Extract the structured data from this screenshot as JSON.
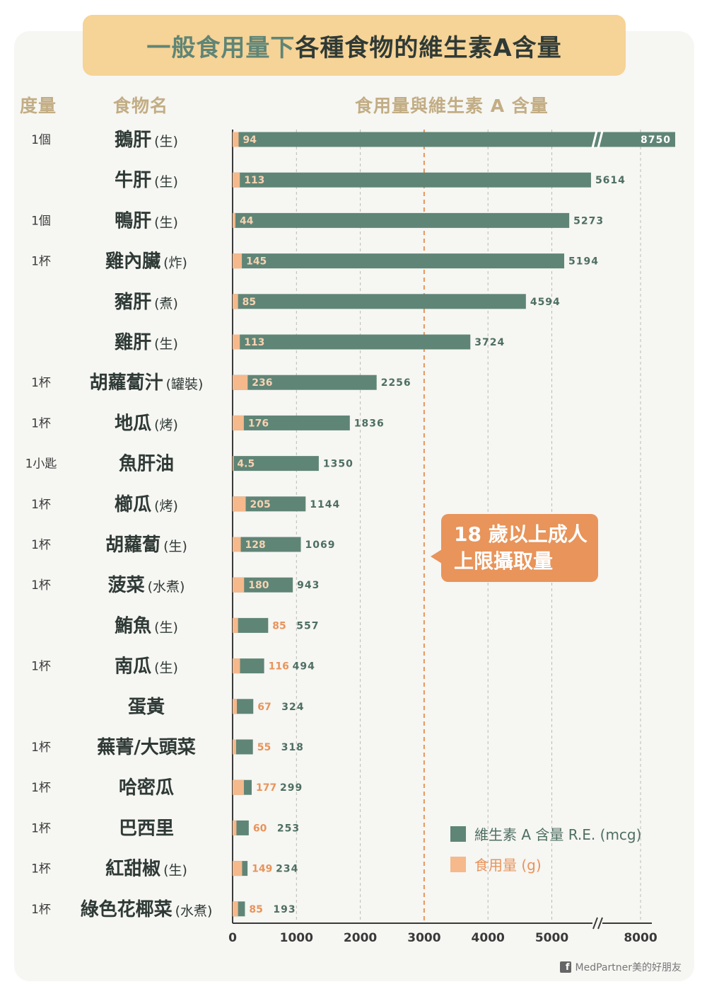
{
  "title": {
    "highlight": "一般食用量下",
    "rest": "各種食物的維生素A含量"
  },
  "headers": {
    "measure": "度量",
    "food": "食物名",
    "chart": "食用量與維生素 A 含量"
  },
  "callout": {
    "line1": "18 歲以上成人",
    "line2": "上限攝取量"
  },
  "legend": [
    {
      "label": "維生素 A 含量 R.E. (mcg)",
      "color": "#5f8576"
    },
    {
      "label": "食用量 (g)",
      "color": "#f5b98c"
    }
  ],
  "footer": {
    "icon": "facebook-icon",
    "text": "MedPartner美的好朋友"
  },
  "colors": {
    "vitamin": "#5f8576",
    "amount": "#f5b98c",
    "amount_text": "#e8945a",
    "limit_line": "#e8945a"
  },
  "chart_data": {
    "type": "bar",
    "orientation": "horizontal",
    "x_ticks": [
      "0",
      "1000",
      "2000",
      "3000",
      "4000",
      "5000",
      "8000"
    ],
    "axis_break": "between 5000 and 8000",
    "reference_line": {
      "value": 3000,
      "label": "18 歲以上成人 上限攝取量"
    },
    "series": [
      {
        "name": "維生素 A 含量 R.E. (mcg)",
        "values": [
          8750,
          5614,
          5273,
          5194,
          4594,
          3724,
          2256,
          1836,
          1350,
          1144,
          1069,
          943,
          557,
          494,
          324,
          318,
          299,
          253,
          234,
          193
        ]
      },
      {
        "name": "食用量 (g)",
        "values": [
          94,
          113,
          44,
          145,
          85,
          113,
          236,
          176,
          4.5,
          205,
          128,
          180,
          85,
          116,
          67,
          55,
          177,
          60,
          149,
          85
        ]
      }
    ],
    "rows": [
      {
        "measure": "1個",
        "food": "鵝肝",
        "note": "(生)",
        "amount": "94",
        "vitamin": "8750"
      },
      {
        "measure": "",
        "food": "牛肝",
        "note": "(生)",
        "amount": "113",
        "vitamin": "5614"
      },
      {
        "measure": "1個",
        "food": "鴨肝",
        "note": "(生)",
        "amount": "44",
        "vitamin": "5273"
      },
      {
        "measure": "1杯",
        "food": "雞內臟",
        "note": "(炸)",
        "amount": "145",
        "vitamin": "5194"
      },
      {
        "measure": "",
        "food": "豬肝",
        "note": "(煮)",
        "amount": "85",
        "vitamin": "4594"
      },
      {
        "measure": "",
        "food": "雞肝",
        "note": "(生)",
        "amount": "113",
        "vitamin": "3724"
      },
      {
        "measure": "1杯",
        "food": "胡蘿蔔汁",
        "note": "(罐裝)",
        "amount": "236",
        "vitamin": "2256"
      },
      {
        "measure": "1杯",
        "food": "地瓜",
        "note": "(烤)",
        "amount": "176",
        "vitamin": "1836"
      },
      {
        "measure": "1小匙",
        "food": "魚肝油",
        "note": "",
        "amount": "4.5",
        "vitamin": "1350"
      },
      {
        "measure": "1杯",
        "food": "櫛瓜",
        "note": "(烤)",
        "amount": "205",
        "vitamin": "1144"
      },
      {
        "measure": "1杯",
        "food": "胡蘿蔔",
        "note": "(生)",
        "amount": "128",
        "vitamin": "1069"
      },
      {
        "measure": "1杯",
        "food": "菠菜",
        "note": "(水煮)",
        "amount": "180",
        "vitamin": "943"
      },
      {
        "measure": "",
        "food": "鮪魚",
        "note": "(生)",
        "amount": "85",
        "vitamin": "557"
      },
      {
        "measure": "1杯",
        "food": "南瓜",
        "note": "(生)",
        "amount": "116",
        "vitamin": "494"
      },
      {
        "measure": "",
        "food": "蛋黃",
        "note": "",
        "amount": "67",
        "vitamin": "324"
      },
      {
        "measure": "1杯",
        "food": "蕪菁/大頭菜",
        "note": "",
        "amount": "55",
        "vitamin": "318"
      },
      {
        "measure": "1杯",
        "food": "哈密瓜",
        "note": "",
        "amount": "177",
        "vitamin": "299"
      },
      {
        "measure": "1杯",
        "food": "巴西里",
        "note": "",
        "amount": "60",
        "vitamin": "253"
      },
      {
        "measure": "1杯",
        "food": "紅甜椒",
        "note": "(生)",
        "amount": "149",
        "vitamin": "234"
      },
      {
        "measure": "1杯",
        "food": "綠色花椰菜",
        "note": "(水煮)",
        "amount": "85",
        "vitamin": "193"
      }
    ]
  }
}
